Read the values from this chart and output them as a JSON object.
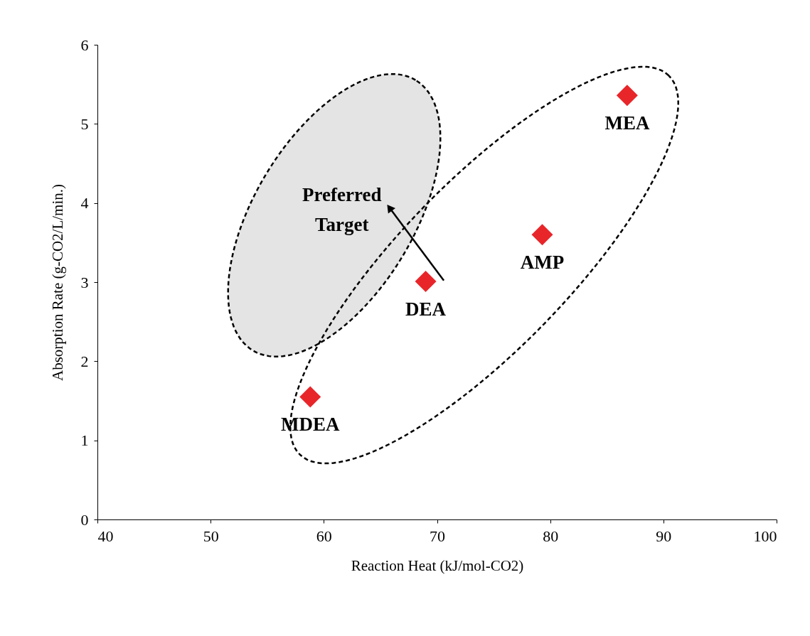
{
  "chart_data": {
    "type": "scatter",
    "xlabel": "Reaction Heat  (kJ/mol-CO2)",
    "ylabel": "Absorption Rate (g-CO2/L/min.)",
    "series": [
      {
        "color": "#e8262a",
        "x": [
          86.8,
          79.3,
          69.0,
          58.8
        ],
        "values": [
          5.36,
          3.6,
          3.01,
          1.55
        ]
      }
    ],
    "marker": "diamond",
    "xlim": [
      40,
      100
    ],
    "xticks": [
      40,
      50,
      60,
      70,
      80,
      90,
      100
    ],
    "ylim": [
      0,
      6
    ],
    "yticks": [
      {
        "value": 0,
        "label": "0"
      },
      {
        "value": 1,
        "label": "1"
      },
      {
        "value": 2,
        "label": "2"
      },
      {
        "value": 3,
        "label": "3"
      },
      {
        "value": 4,
        "label": "4"
      },
      {
        "value": 5,
        "label": "5"
      },
      {
        "value": 6,
        "label": "6"
      }
    ],
    "grid": false,
    "annotations": [
      {
        "text": "MEA",
        "x": 86.8,
        "y": 5.36
      },
      {
        "text": "AMP",
        "x": 79.3,
        "y": 3.6
      },
      {
        "text": "DEA",
        "x": 69.0,
        "y": 3.01
      },
      {
        "text": "MDEA",
        "x": 58.8,
        "y": 1.55
      },
      "Preferred Target"
    ]
  }
}
